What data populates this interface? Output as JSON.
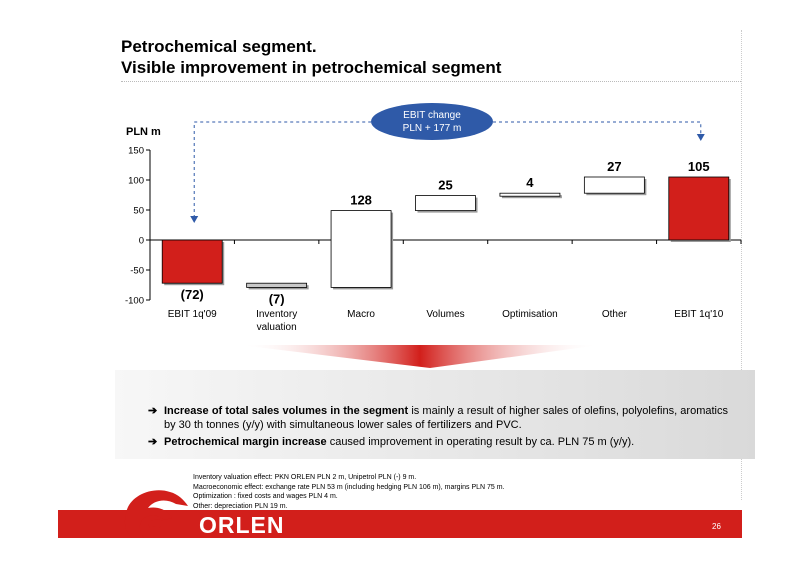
{
  "title": {
    "line1": "Petrochemical segment.",
    "line2": "Visible improvement in petrochemical segment"
  },
  "callout": {
    "line1": "EBIT change",
    "line2": "PLN + 177 m"
  },
  "chart_data": {
    "type": "bar",
    "subtype": "waterfall",
    "ylabel": "PLN m",
    "ylim": [
      -100,
      150
    ],
    "yticks": [
      "150",
      "100",
      "50",
      "0",
      "-50",
      "-100"
    ],
    "categories": [
      "EBIT 1q'09",
      "Inventory valuation",
      "Macro",
      "Volumes",
      "Optimisation",
      "Other",
      "EBIT 1q'10"
    ],
    "category_lines": [
      [
        "EBIT 1q'09"
      ],
      [
        "Inventory",
        "valuation"
      ],
      [
        "Macro"
      ],
      [
        "Volumes"
      ],
      [
        "Optimisation"
      ],
      [
        "Other"
      ],
      [
        "EBIT 1q'10"
      ]
    ],
    "steps": [
      {
        "start": 0,
        "end": -72,
        "kind": "total",
        "label": "(72)"
      },
      {
        "start": -72,
        "end": -79,
        "kind": "delta",
        "label": "(7)"
      },
      {
        "start": -79,
        "end": 49,
        "kind": "delta",
        "label": "128"
      },
      {
        "start": 49,
        "end": 74,
        "kind": "delta",
        "label": "25"
      },
      {
        "start": 74,
        "end": 78,
        "kind": "delta",
        "label": "4"
      },
      {
        "start": 78,
        "end": 105,
        "kind": "delta",
        "label": "27"
      },
      {
        "start": 0,
        "end": 105,
        "kind": "total",
        "label": "105"
      }
    ],
    "grid": false,
    "colors": {
      "total": "#d21f1b",
      "increase": "#ffffff",
      "decrease": "#c8c8c8",
      "connector": "#2f5aa8"
    }
  },
  "bullets": [
    {
      "bold": "Increase of total sales volumes in the segment",
      "text": " is mainly a result of higher sales of olefins, polyolefins, aromatics by 30 th tonnes (y/y) with simultaneous lower sales of fertilizers and PVC."
    },
    {
      "bold": "Petrochemical margin increase",
      "text": " caused improvement in operating result by ca. PLN 75 m (y/y)."
    }
  ],
  "notes": [
    "Inventory valuation effect: PKN ORLEN PLN 2 m, Unipetrol PLN (-) 9  m.",
    "Macroeconomic effect: exchange rate PLN 53 m (including hedging PLN 106  m), margins PLN 75 m.",
    "Optimization : fixed costs and wages PLN 4 m.",
    "Other: depreciation PLN 19 m."
  ],
  "footer": {
    "logo": "ORLEN",
    "page": "26"
  }
}
